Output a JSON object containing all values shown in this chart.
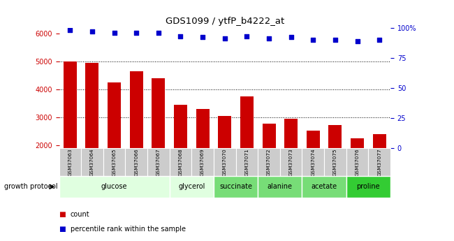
{
  "title": "GDS1099 / ytfP_b4222_at",
  "samples": [
    "GSM37063",
    "GSM37064",
    "GSM37065",
    "GSM37066",
    "GSM37067",
    "GSM37068",
    "GSM37069",
    "GSM37070",
    "GSM37071",
    "GSM37072",
    "GSM37073",
    "GSM37074",
    "GSM37075",
    "GSM37076",
    "GSM37077"
  ],
  "counts": [
    5000,
    4950,
    4250,
    4650,
    4400,
    3450,
    3300,
    3050,
    3750,
    2775,
    2950,
    2525,
    2725,
    2250,
    2400
  ],
  "percentile_ranks": [
    98,
    97,
    96,
    96,
    96,
    93,
    92,
    91,
    93,
    91,
    92,
    90,
    90,
    89,
    90
  ],
  "bar_color": "#cc0000",
  "dot_color": "#0000cc",
  "ylim_left": [
    1900,
    6200
  ],
  "ylim_right": [
    0,
    100
  ],
  "yticks_left": [
    2000,
    3000,
    4000,
    5000,
    6000
  ],
  "yticks_right": [
    0,
    25,
    50,
    75,
    100
  ],
  "yright_labels": [
    "0",
    "25",
    "50",
    "75",
    "100%"
  ],
  "dotted_lines": [
    3000,
    4000,
    5000
  ],
  "groups_corrected": [
    {
      "label": "glucose",
      "start": 0,
      "end": 4,
      "color": "#e0ffe0"
    },
    {
      "label": "glycerol",
      "start": 5,
      "end": 6,
      "color": "#e0ffe0"
    },
    {
      "label": "succinate",
      "start": 7,
      "end": 8,
      "color": "#77dd77"
    },
    {
      "label": "alanine",
      "start": 9,
      "end": 10,
      "color": "#77dd77"
    },
    {
      "label": "acetate",
      "start": 11,
      "end": 12,
      "color": "#77dd77"
    },
    {
      "label": "proline",
      "start": 13,
      "end": 14,
      "color": "#33cc33"
    }
  ],
  "growth_protocol_label": "growth protocol",
  "legend_count_label": "count",
  "legend_pct_label": "percentile rank within the sample",
  "bar_width": 0.6,
  "tick_area_color": "#cccccc"
}
